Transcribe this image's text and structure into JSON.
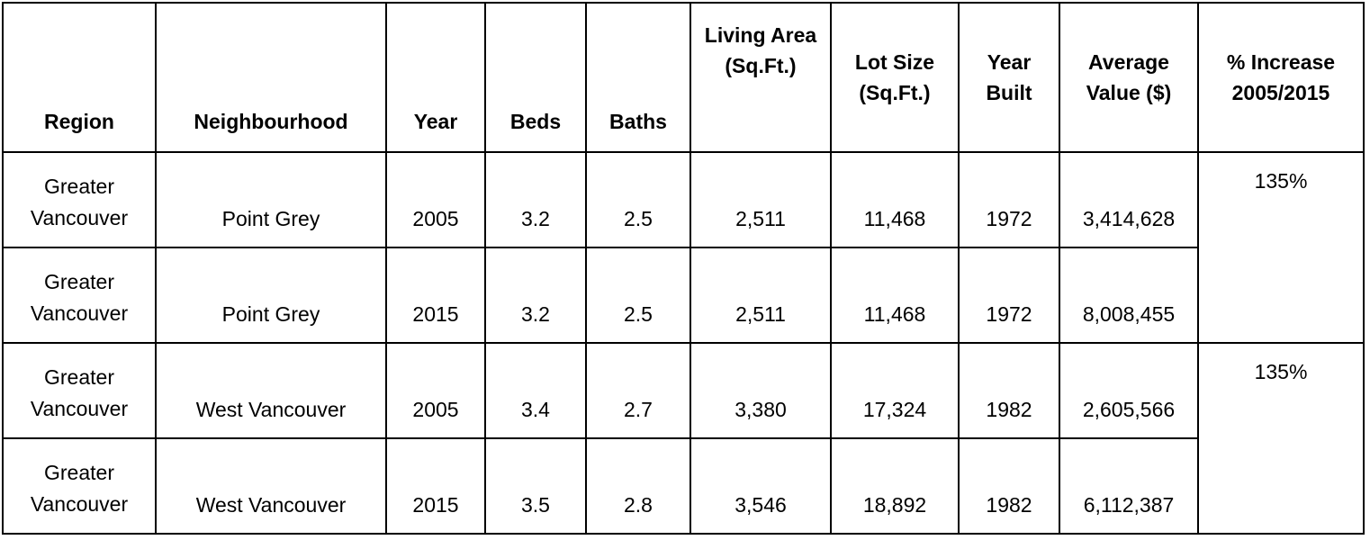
{
  "headers": [
    "Region",
    "Neighbourhood",
    "Year",
    "Beds",
    "Baths",
    "Living Area (Sq.Ft.)",
    "Lot Size (Sq.Ft.)",
    "Year Built",
    "Average Value ($)",
    "% Increase 2005/2015"
  ],
  "rows": [
    {
      "region": "Greater Vancouver",
      "neighbourhood": "Point Grey",
      "year": "2005",
      "beds": "3.2",
      "baths": "2.5",
      "living_area": "2,511",
      "lot_size": "11,468",
      "year_built": "1972",
      "average_value": "3,414,628"
    },
    {
      "region": "Greater Vancouver",
      "neighbourhood": "Point Grey",
      "year": "2015",
      "beds": "3.2",
      "baths": "2.5",
      "living_area": "2,511",
      "lot_size": "11,468",
      "year_built": "1972",
      "average_value": "8,008,455"
    },
    {
      "region": "Greater Vancouver",
      "neighbourhood": "West Vancouver",
      "year": "2005",
      "beds": "3.4",
      "baths": "2.7",
      "living_area": "3,380",
      "lot_size": "17,324",
      "year_built": "1982",
      "average_value": "2,605,566"
    },
    {
      "region": "Greater Vancouver",
      "neighbourhood": "West Vancouver",
      "year": "2015",
      "beds": "3.5",
      "baths": "2.8",
      "living_area": "3,546",
      "lot_size": "18,892",
      "year_built": "1982",
      "average_value": "6,112,387"
    }
  ],
  "increases": [
    "135%",
    "135%"
  ]
}
